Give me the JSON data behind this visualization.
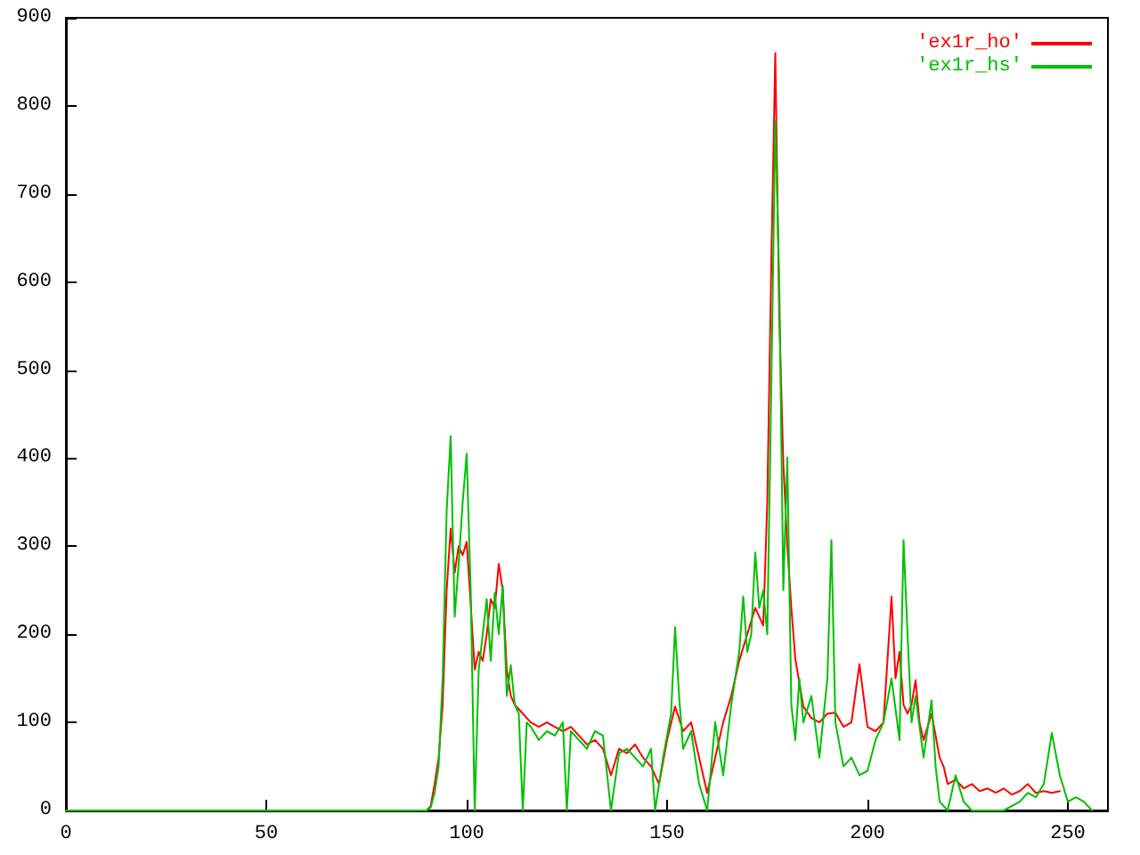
{
  "chart_data": {
    "type": "line",
    "xlim": [
      0,
      260
    ],
    "xticks": [
      0,
      50,
      100,
      150,
      200,
      250
    ],
    "ylim": [
      0,
      900
    ],
    "yticks": [
      0,
      100,
      200,
      300,
      400,
      500,
      600,
      700,
      800,
      900
    ],
    "legend": "top right",
    "grid": false,
    "marker": "none",
    "line_style": "solid",
    "series": [
      {
        "name": "'ex1r_ho'",
        "color": "#ff0000",
        "x": [
          0,
          90,
          91,
          92,
          93,
          94,
          95,
          96,
          97,
          98,
          99,
          100,
          101,
          102,
          103,
          104,
          105,
          106,
          107,
          108,
          109,
          110,
          111,
          112,
          113,
          114,
          116,
          118,
          120,
          122,
          124,
          126,
          128,
          130,
          132,
          134,
          136,
          138,
          140,
          142,
          144,
          146,
          148,
          150,
          152,
          154,
          156,
          158,
          160,
          162,
          164,
          166,
          168,
          170,
          172,
          174,
          175,
          176,
          177,
          178,
          179,
          180,
          181,
          182,
          184,
          186,
          188,
          190,
          192,
          194,
          196,
          198,
          200,
          202,
          204,
          206,
          207,
          208,
          209,
          210,
          211,
          212,
          213,
          214,
          216,
          218,
          219,
          220,
          222,
          224,
          226,
          228,
          230,
          232,
          234,
          236,
          238,
          240,
          242,
          244,
          246,
          248
        ],
        "values": [
          0,
          0,
          5,
          30,
          60,
          120,
          250,
          320,
          270,
          300,
          290,
          305,
          235,
          160,
          180,
          170,
          200,
          240,
          230,
          280,
          250,
          160,
          130,
          120,
          115,
          110,
          100,
          95,
          100,
          95,
          90,
          95,
          85,
          75,
          80,
          70,
          40,
          70,
          65,
          75,
          60,
          50,
          30,
          80,
          118,
          90,
          100,
          60,
          20,
          60,
          100,
          130,
          170,
          200,
          230,
          210,
          350,
          620,
          860,
          560,
          395,
          300,
          230,
          172,
          118,
          105,
          100,
          110,
          111,
          95,
          100,
          166,
          95,
          90,
          100,
          243,
          150,
          180,
          120,
          110,
          120,
          148,
          100,
          80,
          110,
          60,
          50,
          30,
          35,
          25,
          30,
          22,
          25,
          20,
          25,
          18,
          22,
          30,
          20,
          22,
          20,
          22
        ]
      },
      {
        "name": "'ex1r_hs'",
        "color": "#00c000",
        "x": [
          0,
          90,
          91,
          92,
          93,
          94,
          95,
          96,
          97,
          98,
          99,
          100,
          101,
          102,
          103,
          104,
          105,
          106,
          107,
          108,
          109,
          110,
          111,
          112,
          113,
          114,
          115,
          116,
          118,
          120,
          122,
          124,
          125,
          126,
          128,
          130,
          132,
          134,
          136,
          138,
          140,
          142,
          144,
          146,
          147,
          149,
          151,
          152,
          153,
          154,
          156,
          158,
          160,
          162,
          164,
          166,
          168,
          169,
          170,
          171,
          172,
          173,
          174,
          175,
          176,
          177,
          178,
          179,
          180,
          181,
          182,
          183,
          184,
          186,
          188,
          190,
          191,
          192,
          194,
          196,
          198,
          200,
          202,
          204,
          206,
          208,
          209,
          210,
          211,
          212,
          214,
          216,
          217,
          218,
          220,
          222,
          224,
          226,
          230,
          234,
          238,
          240,
          242,
          244,
          246,
          248,
          250,
          252,
          254,
          256
        ],
        "values": [
          0,
          0,
          3,
          20,
          50,
          150,
          340,
          425,
          220,
          280,
          350,
          405,
          250,
          0,
          160,
          200,
          240,
          170,
          247,
          200,
          255,
          130,
          165,
          120,
          110,
          0,
          100,
          95,
          80,
          90,
          85,
          100,
          0,
          90,
          80,
          70,
          90,
          85,
          0,
          65,
          70,
          60,
          50,
          70,
          0,
          60,
          110,
          208,
          130,
          70,
          90,
          30,
          0,
          100,
          40,
          120,
          180,
          243,
          180,
          200,
          293,
          230,
          250,
          200,
          480,
          783,
          600,
          250,
          401,
          120,
          80,
          150,
          100,
          130,
          60,
          150,
          307,
          100,
          50,
          60,
          40,
          45,
          80,
          100,
          150,
          80,
          307,
          200,
          100,
          130,
          60,
          125,
          50,
          10,
          0,
          40,
          10,
          0,
          0,
          0,
          10,
          20,
          15,
          30,
          88,
          40,
          10,
          15,
          10,
          0
        ]
      }
    ]
  }
}
